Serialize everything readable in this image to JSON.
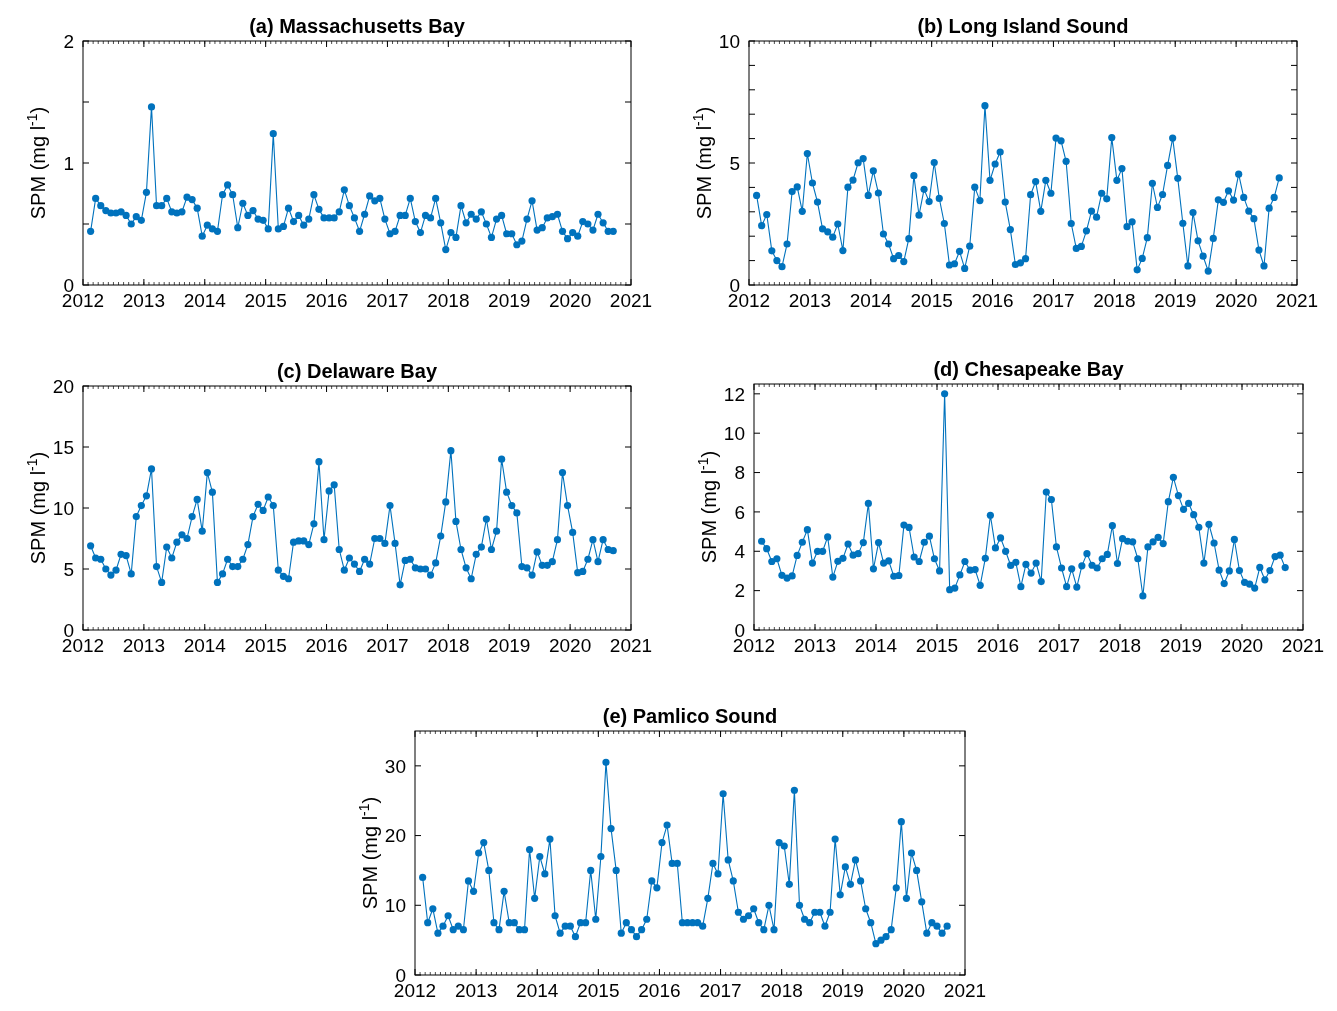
{
  "chart_data": [
    {
      "type": "line",
      "title": "(a) Massachusetts Bay",
      "ylabel": "SPM (mg l$^{-1}$)",
      "xlim": [
        2012,
        2021
      ],
      "xticks": [
        2012,
        2013,
        2014,
        2015,
        2016,
        2017,
        2018,
        2019,
        2020,
        2021
      ],
      "ylim": [
        0,
        2
      ],
      "yticks": [
        0,
        {
          "value": 0.5,
          "label": null
        },
        1,
        {
          "value": 1.5,
          "label": null
        },
        2
      ],
      "grid": false,
      "marker": "circle",
      "line_style": "solid",
      "x": [
        2012.125,
        2012.208,
        2012.292,
        2012.375,
        2012.458,
        2012.542,
        2012.625,
        2012.708,
        2012.792,
        2012.875,
        2012.958,
        2013.042,
        2013.125,
        2013.208,
        2013.292,
        2013.375,
        2013.458,
        2013.542,
        2013.625,
        2013.708,
        2013.792,
        2013.875,
        2013.958,
        2014.042,
        2014.125,
        2014.208,
        2014.292,
        2014.375,
        2014.458,
        2014.542,
        2014.625,
        2014.708,
        2014.792,
        2014.875,
        2014.958,
        2015.042,
        2015.125,
        2015.208,
        2015.292,
        2015.375,
        2015.458,
        2015.542,
        2015.625,
        2015.708,
        2015.792,
        2015.875,
        2015.958,
        2016.042,
        2016.125,
        2016.208,
        2016.292,
        2016.375,
        2016.458,
        2016.542,
        2016.625,
        2016.708,
        2016.792,
        2016.875,
        2016.958,
        2017.042,
        2017.125,
        2017.208,
        2017.292,
        2017.375,
        2017.458,
        2017.542,
        2017.625,
        2017.708,
        2017.792,
        2017.875,
        2017.958,
        2018.042,
        2018.125,
        2018.208,
        2018.292,
        2018.375,
        2018.458,
        2018.542,
        2018.625,
        2018.708,
        2018.792,
        2018.875,
        2018.958,
        2019.042,
        2019.125,
        2019.208,
        2019.292,
        2019.375,
        2019.458,
        2019.542,
        2019.625,
        2019.708,
        2019.792,
        2019.875,
        2019.958,
        2020.042,
        2020.125,
        2020.208,
        2020.292,
        2020.375,
        2020.458,
        2020.542,
        2020.625,
        2020.708
      ],
      "series": [
        {
          "color": "#0072bd",
          "values": [
            0.44,
            0.71,
            0.65,
            0.61,
            0.59,
            0.59,
            0.6,
            0.57,
            0.5,
            0.56,
            0.53,
            0.76,
            1.46,
            0.65,
            0.65,
            0.71,
            0.6,
            0.59,
            0.6,
            0.72,
            0.7,
            0.63,
            0.4,
            0.49,
            0.46,
            0.44,
            0.74,
            0.82,
            0.74,
            0.47,
            0.67,
            0.57,
            0.61,
            0.54,
            0.53,
            0.46,
            1.24,
            0.46,
            0.48,
            0.63,
            0.52,
            0.57,
            0.49,
            0.54,
            0.74,
            0.62,
            0.55,
            0.55,
            0.55,
            0.6,
            0.78,
            0.65,
            0.55,
            0.44,
            0.58,
            0.73,
            0.69,
            0.71,
            0.54,
            0.42,
            0.44,
            0.57,
            0.57,
            0.71,
            0.52,
            0.43,
            0.57,
            0.55,
            0.71,
            0.51,
            0.29,
            0.43,
            0.39,
            0.65,
            0.51,
            0.58,
            0.54,
            0.6,
            0.5,
            0.39,
            0.54,
            0.57,
            0.42,
            0.42,
            0.33,
            0.36,
            0.54,
            0.69,
            0.45,
            0.47,
            0.55,
            0.56,
            0.58,
            0.44,
            0.38,
            0.43,
            0.4,
            0.52,
            0.5,
            0.45,
            0.58,
            0.51,
            0.44,
            0.44
          ]
        }
      ]
    },
    {
      "type": "line",
      "title": "(b) Long Island Sound",
      "ylabel": "SPM (mg l$^{-1}$)",
      "xlim": [
        2012,
        2021
      ],
      "xticks": [
        2012,
        2013,
        2014,
        2015,
        2016,
        2017,
        2018,
        2019,
        2020,
        2021
      ],
      "ylim": [
        0,
        10
      ],
      "yticks": [
        0,
        {
          "value": 1,
          "label": null
        },
        {
          "value": 2,
          "label": null
        },
        {
          "value": 3,
          "label": null
        },
        {
          "value": 4,
          "label": null
        },
        5,
        {
          "value": 6,
          "label": null
        },
        {
          "value": 7,
          "label": null
        },
        {
          "value": 8,
          "label": null
        },
        {
          "value": 9,
          "label": null
        },
        10
      ],
      "grid": false,
      "marker": "circle",
      "line_style": "solid",
      "x": [
        2012.125,
        2012.208,
        2012.292,
        2012.375,
        2012.458,
        2012.542,
        2012.625,
        2012.708,
        2012.792,
        2012.875,
        2012.958,
        2013.042,
        2013.125,
        2013.208,
        2013.292,
        2013.375,
        2013.458,
        2013.542,
        2013.625,
        2013.708,
        2013.792,
        2013.875,
        2013.958,
        2014.042,
        2014.125,
        2014.208,
        2014.292,
        2014.375,
        2014.458,
        2014.542,
        2014.625,
        2014.708,
        2014.792,
        2014.875,
        2014.958,
        2015.042,
        2015.125,
        2015.208,
        2015.292,
        2015.375,
        2015.458,
        2015.542,
        2015.625,
        2015.708,
        2015.792,
        2015.875,
        2015.958,
        2016.042,
        2016.125,
        2016.208,
        2016.292,
        2016.375,
        2016.458,
        2016.542,
        2016.625,
        2016.708,
        2016.792,
        2016.875,
        2016.958,
        2017.042,
        2017.125,
        2017.208,
        2017.292,
        2017.375,
        2017.458,
        2017.542,
        2017.625,
        2017.708,
        2017.792,
        2017.875,
        2017.958,
        2018.042,
        2018.125,
        2018.208,
        2018.292,
        2018.375,
        2018.458,
        2018.542,
        2018.625,
        2018.708,
        2018.792,
        2018.875,
        2018.958,
        2019.042,
        2019.125,
        2019.208,
        2019.292,
        2019.375,
        2019.458,
        2019.542,
        2019.625,
        2019.708,
        2019.792,
        2019.875,
        2019.958,
        2020.042,
        2020.125,
        2020.208,
        2020.292,
        2020.375,
        2020.458,
        2020.542,
        2020.625,
        2020.708
      ],
      "series": [
        {
          "color": "#0072bd",
          "values": [
            3.67,
            2.43,
            2.89,
            1.4,
            1.0,
            0.75,
            1.68,
            3.83,
            4.02,
            3.02,
            5.39,
            4.18,
            3.4,
            2.3,
            2.18,
            1.96,
            2.5,
            1.41,
            4.01,
            4.3,
            5.01,
            5.18,
            3.67,
            4.68,
            3.77,
            2.09,
            1.68,
            1.08,
            1.21,
            0.96,
            1.9,
            4.48,
            2.86,
            3.92,
            3.42,
            5.02,
            3.55,
            2.52,
            0.82,
            0.87,
            1.38,
            0.68,
            1.59,
            4.01,
            3.46,
            7.35,
            4.29,
            4.96,
            5.45,
            3.4,
            2.27,
            0.84,
            0.91,
            1.08,
            3.7,
            4.24,
            3.02,
            4.29,
            3.76,
            6.02,
            5.91,
            5.07,
            2.52,
            1.5,
            1.58,
            2.22,
            3.03,
            2.78,
            3.76,
            3.53,
            6.04,
            4.29,
            4.77,
            2.39,
            2.59,
            0.62,
            1.09,
            1.94,
            4.17,
            3.18,
            3.71,
            4.9,
            6.02,
            4.37,
            2.53,
            0.78,
            2.97,
            1.81,
            1.18,
            0.57,
            1.91,
            3.49,
            3.39,
            3.86,
            3.48,
            4.54,
            3.59,
            3.03,
            2.72,
            1.43,
            0.78,
            3.15,
            3.59,
            4.39
          ]
        }
      ]
    },
    {
      "type": "line",
      "title": "(c) Delaware Bay",
      "ylabel": "SPM (mg l$^{-1}$)",
      "xlim": [
        2012,
        2021
      ],
      "xticks": [
        2012,
        2013,
        2014,
        2015,
        2016,
        2017,
        2018,
        2019,
        2020,
        2021
      ],
      "ylim": [
        0,
        20
      ],
      "yticks": [
        0,
        5,
        10,
        15,
        20
      ],
      "grid": false,
      "marker": "circle",
      "line_style": "solid",
      "x": [
        2012.125,
        2012.208,
        2012.292,
        2012.375,
        2012.458,
        2012.542,
        2012.625,
        2012.708,
        2012.792,
        2012.875,
        2012.958,
        2013.042,
        2013.125,
        2013.208,
        2013.292,
        2013.375,
        2013.458,
        2013.542,
        2013.625,
        2013.708,
        2013.792,
        2013.875,
        2013.958,
        2014.042,
        2014.125,
        2014.208,
        2014.292,
        2014.375,
        2014.458,
        2014.542,
        2014.625,
        2014.708,
        2014.792,
        2014.875,
        2014.958,
        2015.042,
        2015.125,
        2015.208,
        2015.292,
        2015.375,
        2015.458,
        2015.542,
        2015.625,
        2015.708,
        2015.792,
        2015.875,
        2015.958,
        2016.042,
        2016.125,
        2016.208,
        2016.292,
        2016.375,
        2016.458,
        2016.542,
        2016.625,
        2016.708,
        2016.792,
        2016.875,
        2016.958,
        2017.042,
        2017.125,
        2017.208,
        2017.292,
        2017.375,
        2017.458,
        2017.542,
        2017.625,
        2017.708,
        2017.792,
        2017.875,
        2017.958,
        2018.042,
        2018.125,
        2018.208,
        2018.292,
        2018.375,
        2018.458,
        2018.542,
        2018.625,
        2018.708,
        2018.792,
        2018.875,
        2018.958,
        2019.042,
        2019.125,
        2019.208,
        2019.292,
        2019.375,
        2019.458,
        2019.542,
        2019.625,
        2019.708,
        2019.792,
        2019.875,
        2019.958,
        2020.042,
        2020.125,
        2020.208,
        2020.292,
        2020.375,
        2020.458,
        2020.542,
        2020.625,
        2020.708
      ],
      "series": [
        {
          "color": "#0072bd",
          "values": [
            6.9,
            5.9,
            5.8,
            5.0,
            4.5,
            4.9,
            6.2,
            6.1,
            4.6,
            9.3,
            10.2,
            11.0,
            13.2,
            5.2,
            3.9,
            6.8,
            5.9,
            7.2,
            7.8,
            7.5,
            9.3,
            10.7,
            8.1,
            12.9,
            11.3,
            3.9,
            4.6,
            5.8,
            5.2,
            5.2,
            5.8,
            7.0,
            9.3,
            10.3,
            9.8,
            10.9,
            10.2,
            4.9,
            4.4,
            4.2,
            7.2,
            7.3,
            7.3,
            7.0,
            8.7,
            13.8,
            7.4,
            11.4,
            11.9,
            6.6,
            4.9,
            5.9,
            5.4,
            4.8,
            5.8,
            5.4,
            7.5,
            7.5,
            7.1,
            10.2,
            7.1,
            3.7,
            5.7,
            5.8,
            5.1,
            5.0,
            5.0,
            4.5,
            5.5,
            7.7,
            10.5,
            14.7,
            8.9,
            6.6,
            5.1,
            4.2,
            6.2,
            6.8,
            9.1,
            6.6,
            8.1,
            14.0,
            11.3,
            10.2,
            9.6,
            5.2,
            5.1,
            4.5,
            6.4,
            5.3,
            5.3,
            5.6,
            7.4,
            12.9,
            10.2,
            8.0,
            4.7,
            4.8,
            5.8,
            7.4,
            5.6,
            7.4,
            6.6,
            6.5
          ]
        }
      ]
    },
    {
      "type": "line",
      "title": "(d) Chesapeake Bay",
      "ylabel": "SPM (mg l$^{-1}$)",
      "xlim": [
        2012,
        2021
      ],
      "xticks": [
        2012,
        2013,
        2014,
        2015,
        2016,
        2017,
        2018,
        2019,
        2020,
        2021
      ],
      "ylim": [
        0,
        12.5
      ],
      "yticks": [
        0,
        2,
        4,
        6,
        8,
        10,
        12
      ],
      "grid": false,
      "marker": "circle",
      "line_style": "solid",
      "x": [
        2012.125,
        2012.208,
        2012.292,
        2012.375,
        2012.458,
        2012.542,
        2012.625,
        2012.708,
        2012.792,
        2012.875,
        2012.958,
        2013.042,
        2013.125,
        2013.208,
        2013.292,
        2013.375,
        2013.458,
        2013.542,
        2013.625,
        2013.708,
        2013.792,
        2013.875,
        2013.958,
        2014.042,
        2014.125,
        2014.208,
        2014.292,
        2014.375,
        2014.458,
        2014.542,
        2014.625,
        2014.708,
        2014.792,
        2014.875,
        2014.958,
        2015.042,
        2015.125,
        2015.208,
        2015.292,
        2015.375,
        2015.458,
        2015.542,
        2015.625,
        2015.708,
        2015.792,
        2015.875,
        2015.958,
        2016.042,
        2016.125,
        2016.208,
        2016.292,
        2016.375,
        2016.458,
        2016.542,
        2016.625,
        2016.708,
        2016.792,
        2016.875,
        2016.958,
        2017.042,
        2017.125,
        2017.208,
        2017.292,
        2017.375,
        2017.458,
        2017.542,
        2017.625,
        2017.708,
        2017.792,
        2017.875,
        2017.958,
        2018.042,
        2018.125,
        2018.208,
        2018.292,
        2018.375,
        2018.458,
        2018.542,
        2018.625,
        2018.708,
        2018.792,
        2018.875,
        2018.958,
        2019.042,
        2019.125,
        2019.208,
        2019.292,
        2019.375,
        2019.458,
        2019.542,
        2019.625,
        2019.708,
        2019.792,
        2019.875,
        2019.958,
        2020.042,
        2020.125,
        2020.208,
        2020.292,
        2020.375,
        2020.458,
        2020.542,
        2020.625,
        2020.708
      ],
      "series": [
        {
          "color": "#0072bd",
          "values": [
            4.51,
            4.13,
            3.48,
            3.62,
            2.78,
            2.64,
            2.75,
            3.79,
            4.46,
            5.1,
            3.4,
            4.0,
            4.0,
            4.73,
            2.69,
            3.49,
            3.64,
            4.37,
            3.8,
            3.88,
            4.44,
            6.43,
            3.11,
            4.44,
            3.4,
            3.51,
            2.73,
            2.77,
            5.33,
            5.21,
            3.71,
            3.48,
            4.46,
            4.77,
            3.62,
            3.0,
            12.0,
            2.05,
            2.13,
            2.8,
            3.48,
            3.04,
            3.07,
            2.27,
            3.64,
            5.83,
            4.17,
            4.68,
            4.0,
            3.28,
            3.44,
            2.2,
            3.33,
            2.89,
            3.4,
            2.46,
            7.01,
            6.63,
            4.22,
            3.15,
            2.2,
            3.11,
            2.18,
            3.26,
            3.88,
            3.29,
            3.15,
            3.62,
            3.84,
            5.3,
            3.38,
            4.64,
            4.51,
            4.48,
            3.62,
            1.73,
            4.22,
            4.48,
            4.71,
            4.39,
            6.52,
            7.76,
            6.83,
            6.13,
            6.43,
            5.86,
            5.22,
            3.4,
            5.37,
            4.42,
            3.04,
            2.36,
            3.0,
            4.6,
            3.02,
            2.42,
            2.33,
            2.13,
            3.18,
            2.55,
            3.02,
            3.73,
            3.8,
            3.17
          ]
        }
      ]
    },
    {
      "type": "line",
      "title": "(e) Pamlico Sound",
      "ylabel": "SPM (mg l$^{-1}$)",
      "xlim": [
        2012,
        2021
      ],
      "xticks": [
        2012,
        2013,
        2014,
        2015,
        2016,
        2017,
        2018,
        2019,
        2020,
        2021
      ],
      "ylim": [
        0,
        35
      ],
      "yticks": [
        0,
        10,
        20,
        30
      ],
      "grid": false,
      "marker": "circle",
      "line_style": "solid",
      "x": [
        2012.125,
        2012.208,
        2012.292,
        2012.375,
        2012.458,
        2012.542,
        2012.625,
        2012.708,
        2012.792,
        2012.875,
        2012.958,
        2013.042,
        2013.125,
        2013.208,
        2013.292,
        2013.375,
        2013.458,
        2013.542,
        2013.625,
        2013.708,
        2013.792,
        2013.875,
        2013.958,
        2014.042,
        2014.125,
        2014.208,
        2014.292,
        2014.375,
        2014.458,
        2014.542,
        2014.625,
        2014.708,
        2014.792,
        2014.875,
        2014.958,
        2015.042,
        2015.125,
        2015.208,
        2015.292,
        2015.375,
        2015.458,
        2015.542,
        2015.625,
        2015.708,
        2015.792,
        2015.875,
        2015.958,
        2016.042,
        2016.125,
        2016.208,
        2016.292,
        2016.375,
        2016.458,
        2016.542,
        2016.625,
        2016.708,
        2016.792,
        2016.875,
        2016.958,
        2017.042,
        2017.125,
        2017.208,
        2017.292,
        2017.375,
        2017.458,
        2017.542,
        2017.625,
        2017.708,
        2017.792,
        2017.875,
        2017.958,
        2018.042,
        2018.125,
        2018.208,
        2018.292,
        2018.375,
        2018.458,
        2018.542,
        2018.625,
        2018.708,
        2018.792,
        2018.875,
        2018.958,
        2019.042,
        2019.125,
        2019.208,
        2019.292,
        2019.375,
        2019.458,
        2019.542,
        2019.625,
        2019.708,
        2019.792,
        2019.875,
        2019.958,
        2020.042,
        2020.125,
        2020.208,
        2020.292,
        2020.375,
        2020.458,
        2020.542,
        2020.625,
        2020.708
      ],
      "series": [
        {
          "color": "#0072bd",
          "values": [
            14,
            7.5,
            9.5,
            6,
            7,
            8.5,
            6.5,
            7,
            6.5,
            13.5,
            12,
            17.5,
            19,
            15,
            7.5,
            6.5,
            12,
            7.5,
            7.5,
            6.5,
            6.5,
            18,
            11,
            17,
            14.5,
            19.5,
            8.5,
            6,
            7,
            7,
            5.5,
            7.5,
            7.5,
            15,
            8,
            17,
            30.5,
            21,
            15,
            6,
            7.5,
            6.5,
            5.5,
            6.5,
            8,
            13.5,
            12.5,
            19,
            21.5,
            16,
            16,
            7.5,
            7.5,
            7.5,
            7.5,
            7,
            11,
            16,
            14.5,
            26,
            16.5,
            13.5,
            9,
            8,
            8.5,
            9.5,
            7.5,
            6.5,
            10,
            6.5,
            19,
            18.5,
            13,
            26.5,
            10,
            8,
            7.5,
            9,
            9,
            7,
            9,
            19.5,
            11.5,
            15.5,
            13,
            16.5,
            13.5,
            9.5,
            7.5,
            4.5,
            5,
            5.5,
            6.5,
            12.5,
            22,
            11,
            17.5,
            15,
            10.5,
            6,
            7.5,
            7,
            6,
            7
          ]
        }
      ]
    }
  ]
}
